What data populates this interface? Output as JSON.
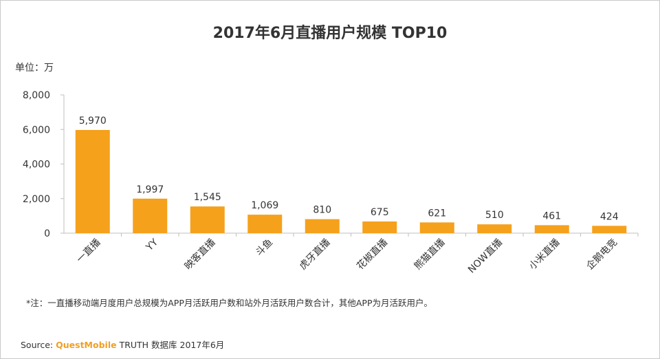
{
  "chart_data": {
    "type": "bar",
    "title": "2017年6月直播用户规模 TOP10",
    "unit_label": "单位：万",
    "categories": [
      "一直播",
      "YY",
      "映客直播",
      "斗鱼",
      "虎牙直播",
      "花椒直播",
      "熊猫直播",
      "NOW直播",
      "小米直播",
      "企鹅电竞"
    ],
    "values": [
      5970,
      1997,
      1545,
      1069,
      810,
      675,
      621,
      510,
      461,
      424
    ],
    "data_labels": [
      "5,970",
      "1,997",
      "1,545",
      "1,069",
      "810",
      "675",
      "621",
      "510",
      "461",
      "424"
    ],
    "yticks": [
      "0",
      "2,000",
      "4,000",
      "6,000",
      "8,000"
    ],
    "ylim": [
      0,
      8000
    ],
    "grid": false,
    "bar_color": "#f5a11c"
  },
  "footer": {
    "note": "*注：一直播移动端月度用户总规模为APP月活跃用户数和站外月活跃用户数合计，其他APP为月活跃用户。",
    "source_prefix": "Source:",
    "source_brand": "QuestMobile",
    "source_rest": "TRUTH 数据库 2017年6月"
  }
}
